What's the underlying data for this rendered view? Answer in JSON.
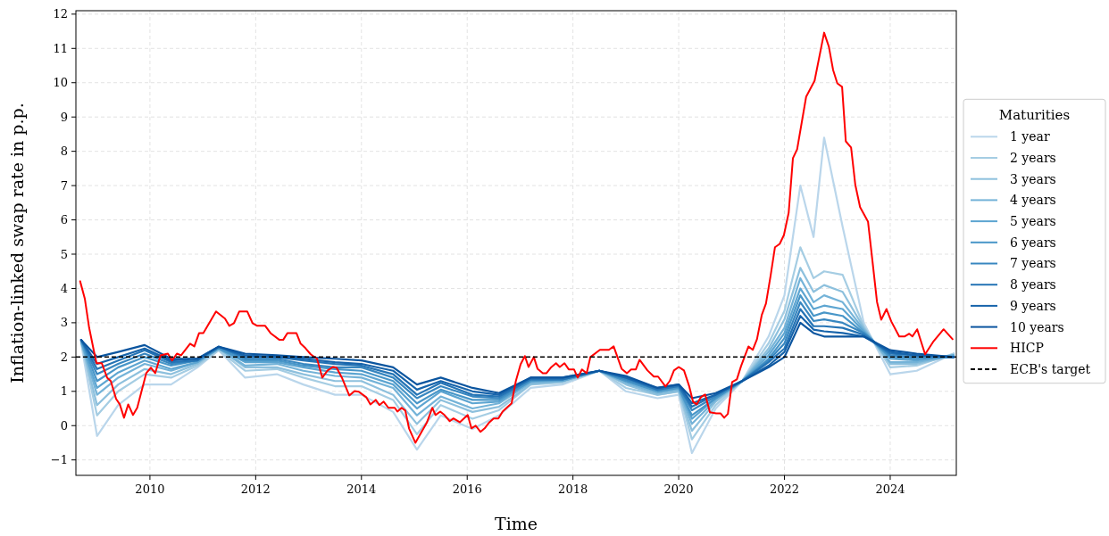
{
  "chart_data": {
    "type": "line",
    "xlabel": "Time",
    "ylabel": "Inflation-linked swap rate in p.p.",
    "legend_title": "Maturities",
    "legend": "right",
    "grid": true,
    "marker": "none",
    "line_style": "solid",
    "xlim": [
      2008.6,
      2025.25
    ],
    "xticks": [
      2010,
      2012,
      2014,
      2016,
      2018,
      2020,
      2022,
      2024
    ],
    "ylim": [
      -1.45,
      12.1
    ],
    "yticks": [
      -1,
      0,
      1,
      2,
      3,
      4,
      5,
      6,
      7,
      8,
      9,
      10,
      11,
      12
    ],
    "x": [
      2008.7,
      2009.0,
      2009.4,
      2009.9,
      2010.4,
      2010.9,
      2011.3,
      2011.8,
      2012.4,
      2012.9,
      2013.5,
      2014.0,
      2014.6,
      2015.05,
      2015.5,
      2016.1,
      2016.6,
      2017.2,
      2017.8,
      2018.5,
      2019.0,
      2019.6,
      2020.0,
      2020.25,
      2020.7,
      2021.2,
      2021.7,
      2022.0,
      2022.3,
      2022.55,
      2022.75,
      2023.1,
      2023.5,
      2024.0,
      2024.5,
      2025.2
    ],
    "series": [
      {
        "name": "1 year",
        "color": "#bad6eb",
        "values": [
          2.4,
          -0.3,
          0.6,
          1.2,
          1.2,
          1.7,
          2.2,
          1.4,
          1.5,
          1.2,
          0.9,
          0.9,
          0.4,
          -0.7,
          0.3,
          -0.1,
          0.3,
          1.1,
          1.2,
          1.6,
          1.0,
          0.8,
          0.9,
          -0.8,
          0.5,
          1.3,
          2.6,
          3.8,
          7.0,
          5.5,
          8.4,
          5.8,
          3.0,
          1.5,
          1.6,
          2.1
        ]
      },
      {
        "name": "2 years",
        "color": "#a5cde3",
        "values": [
          2.45,
          0.3,
          1.0,
          1.5,
          1.4,
          1.75,
          2.2,
          1.6,
          1.65,
          1.4,
          1.15,
          1.15,
          0.75,
          -0.25,
          0.6,
          0.2,
          0.45,
          1.2,
          1.25,
          1.6,
          1.1,
          0.9,
          1.0,
          -0.4,
          0.6,
          1.3,
          2.4,
          3.35,
          5.2,
          4.3,
          4.5,
          4.4,
          2.9,
          1.7,
          1.75,
          2.1
        ]
      },
      {
        "name": "3 years",
        "color": "#8dc0dd",
        "values": [
          2.45,
          0.6,
          1.2,
          1.65,
          1.5,
          1.8,
          2.25,
          1.7,
          1.7,
          1.5,
          1.3,
          1.3,
          0.9,
          0.05,
          0.75,
          0.4,
          0.55,
          1.2,
          1.3,
          1.6,
          1.2,
          0.9,
          1.0,
          -0.15,
          0.7,
          1.3,
          2.25,
          3.1,
          4.6,
          3.9,
          4.1,
          3.9,
          2.85,
          1.8,
          1.8,
          2.05
        ]
      },
      {
        "name": "4 years",
        "color": "#74b3d8",
        "values": [
          2.45,
          0.9,
          1.4,
          1.8,
          1.6,
          1.85,
          2.25,
          1.75,
          1.8,
          1.6,
          1.45,
          1.4,
          1.1,
          0.3,
          0.85,
          0.5,
          0.65,
          1.25,
          1.3,
          1.6,
          1.25,
          0.95,
          1.05,
          0.05,
          0.75,
          1.3,
          2.15,
          2.85,
          4.3,
          3.6,
          3.8,
          3.6,
          2.8,
          1.85,
          1.85,
          2.05
        ]
      },
      {
        "name": "5 years",
        "color": "#5da5d1",
        "values": [
          2.45,
          1.1,
          1.55,
          1.9,
          1.65,
          1.85,
          2.25,
          1.85,
          1.85,
          1.7,
          1.55,
          1.5,
          1.2,
          0.5,
          1.0,
          0.65,
          0.7,
          1.3,
          1.3,
          1.6,
          1.3,
          1.0,
          1.1,
          0.2,
          0.8,
          1.3,
          2.05,
          2.7,
          4.0,
          3.4,
          3.5,
          3.4,
          2.75,
          1.95,
          1.9,
          2.05
        ]
      },
      {
        "name": "6 years",
        "color": "#4896c8",
        "values": [
          2.5,
          1.3,
          1.7,
          2.0,
          1.75,
          1.9,
          2.25,
          1.9,
          1.9,
          1.75,
          1.65,
          1.6,
          1.3,
          0.65,
          1.05,
          0.75,
          0.75,
          1.3,
          1.35,
          1.6,
          1.3,
          1.0,
          1.1,
          0.3,
          0.8,
          1.3,
          1.95,
          2.55,
          3.8,
          3.2,
          3.3,
          3.2,
          2.7,
          2.0,
          1.95,
          2.0
        ]
      },
      {
        "name": "7 years",
        "color": "#3887c0",
        "values": [
          2.5,
          1.5,
          1.8,
          2.1,
          1.8,
          1.9,
          2.3,
          1.95,
          1.95,
          1.8,
          1.7,
          1.7,
          1.4,
          0.8,
          1.15,
          0.85,
          0.8,
          1.35,
          1.35,
          1.6,
          1.35,
          1.05,
          1.15,
          0.45,
          0.85,
          1.3,
          1.9,
          2.4,
          3.6,
          3.05,
          3.1,
          3.0,
          2.7,
          2.05,
          2.0,
          2.0
        ]
      },
      {
        "name": "8 years",
        "color": "#2574b5",
        "values": [
          2.5,
          1.65,
          1.9,
          2.2,
          1.85,
          1.9,
          2.3,
          2.0,
          2.0,
          1.9,
          1.8,
          1.75,
          1.5,
          0.9,
          1.25,
          0.9,
          0.85,
          1.35,
          1.35,
          1.6,
          1.4,
          1.05,
          1.15,
          0.55,
          0.9,
          1.3,
          1.85,
          2.25,
          3.4,
          2.9,
          2.9,
          2.85,
          2.65,
          2.1,
          2.05,
          2.0
        ]
      },
      {
        "name": "9 years",
        "color": "#1764ab",
        "values": [
          2.5,
          1.8,
          2.0,
          2.25,
          1.9,
          1.95,
          2.3,
          2.05,
          2.0,
          1.95,
          1.85,
          1.8,
          1.6,
          1.05,
          1.3,
          1.0,
          0.9,
          1.4,
          1.4,
          1.6,
          1.4,
          1.1,
          1.2,
          0.65,
          0.9,
          1.3,
          1.75,
          2.15,
          3.2,
          2.8,
          2.75,
          2.7,
          2.6,
          2.15,
          2.05,
          2.0
        ]
      },
      {
        "name": "10 years",
        "color": "#0b559f",
        "values": [
          2.5,
          2.0,
          2.15,
          2.35,
          1.95,
          1.95,
          2.3,
          2.1,
          2.05,
          2.0,
          1.95,
          1.9,
          1.7,
          1.2,
          1.4,
          1.1,
          0.95,
          1.4,
          1.4,
          1.6,
          1.45,
          1.1,
          1.2,
          0.8,
          0.95,
          1.3,
          1.7,
          2.0,
          3.0,
          2.7,
          2.6,
          2.6,
          2.6,
          2.2,
          2.1,
          2.0
        ]
      },
      {
        "name": "HICP",
        "color": "#ff0000",
        "x": [
          2008.68,
          2008.77,
          2008.85,
          2008.94,
          2008.99,
          2009.09,
          2009.19,
          2009.26,
          2009.36,
          2009.43,
          2009.51,
          2009.59,
          2009.68,
          2009.76,
          2009.93,
          2010.02,
          2010.1,
          2010.2,
          2010.34,
          2010.42,
          2010.51,
          2010.59,
          2010.76,
          2010.84,
          2010.93,
          2011.01,
          2011.25,
          2011.42,
          2011.5,
          2011.59,
          2011.69,
          2011.84,
          2011.94,
          2012.03,
          2012.18,
          2012.28,
          2012.45,
          2012.52,
          2012.6,
          2012.77,
          2012.85,
          2012.94,
          2013.04,
          2013.16,
          2013.26,
          2013.36,
          2013.46,
          2013.53,
          2013.63,
          2013.77,
          2013.87,
          2013.95,
          2014.09,
          2014.17,
          2014.27,
          2014.34,
          2014.42,
          2014.51,
          2014.63,
          2014.68,
          2014.76,
          2014.83,
          2014.9,
          2015.02,
          2015.24,
          2015.34,
          2015.4,
          2015.49,
          2015.57,
          2015.67,
          2015.74,
          2015.86,
          2016.01,
          2016.08,
          2016.16,
          2016.25,
          2016.33,
          2016.42,
          2016.5,
          2016.59,
          2016.67,
          2016.76,
          2016.84,
          2016.92,
          2017.01,
          2017.09,
          2017.16,
          2017.26,
          2017.33,
          2017.43,
          2017.5,
          2017.58,
          2017.68,
          2017.75,
          2017.84,
          2017.92,
          2018.02,
          2018.09,
          2018.17,
          2018.26,
          2018.33,
          2018.51,
          2018.68,
          2018.77,
          2018.92,
          2019.02,
          2019.1,
          2019.19,
          2019.26,
          2019.41,
          2019.53,
          2019.61,
          2019.75,
          2019.83,
          2019.91,
          2020.0,
          2020.1,
          2020.2,
          2020.27,
          2020.34,
          2020.42,
          2020.5,
          2020.59,
          2020.71,
          2020.79,
          2020.86,
          2020.93,
          2021.01,
          2021.1,
          2021.18,
          2021.32,
          2021.4,
          2021.48,
          2021.57,
          2021.65,
          2021.74,
          2021.82,
          2021.91,
          2021.99,
          2022.08,
          2022.16,
          2022.24,
          2022.41,
          2022.57,
          2022.75,
          2022.84,
          2022.92,
          2023.0,
          2023.09,
          2023.16,
          2023.26,
          2023.34,
          2023.43,
          2023.58,
          2023.66,
          2023.75,
          2023.83,
          2023.93,
          2024.02,
          2024.17,
          2024.27,
          2024.36,
          2024.42,
          2024.51,
          2024.66,
          2024.81,
          2025.01,
          2025.18
        ],
        "values": [
          4.21,
          3.69,
          2.86,
          2.18,
          1.82,
          1.82,
          1.4,
          1.3,
          0.78,
          0.62,
          0.23,
          0.62,
          0.31,
          0.52,
          1.53,
          1.69,
          1.53,
          2.05,
          2.1,
          1.9,
          2.1,
          2.05,
          2.39,
          2.31,
          2.7,
          2.7,
          3.33,
          3.12,
          2.91,
          2.99,
          3.33,
          3.33,
          2.99,
          2.91,
          2.91,
          2.7,
          2.5,
          2.5,
          2.7,
          2.7,
          2.39,
          2.26,
          2.08,
          1.95,
          1.4,
          1.61,
          1.71,
          1.69,
          1.4,
          0.88,
          1.01,
          0.99,
          0.83,
          0.62,
          0.75,
          0.6,
          0.7,
          0.52,
          0.52,
          0.41,
          0.52,
          0.44,
          -0.08,
          -0.5,
          0.1,
          0.52,
          0.31,
          0.41,
          0.31,
          0.13,
          0.21,
          0.1,
          0.31,
          -0.08,
          0,
          -0.18,
          -0.08,
          0.1,
          0.21,
          0.21,
          0.41,
          0.54,
          0.65,
          1.3,
          1.79,
          2.03,
          1.71,
          2.0,
          1.66,
          1.53,
          1.53,
          1.69,
          1.82,
          1.71,
          1.82,
          1.64,
          1.64,
          1.4,
          1.64,
          1.53,
          2.0,
          2.21,
          2.21,
          2.31,
          1.66,
          1.53,
          1.64,
          1.64,
          1.92,
          1.61,
          1.43,
          1.43,
          1.14,
          1.3,
          1.61,
          1.71,
          1.61,
          1.14,
          0.7,
          0.62,
          0.83,
          0.91,
          0.39,
          0.36,
          0.36,
          0.23,
          0.34,
          1.27,
          1.35,
          1.74,
          2.31,
          2.21,
          2.52,
          3.22,
          3.56,
          4.39,
          5.2,
          5.3,
          5.56,
          6.21,
          7.8,
          8.06,
          9.59,
          10.06,
          11.46,
          11.05,
          10.37,
          9.98,
          9.88,
          8.29,
          8.11,
          7.02,
          6.37,
          5.95,
          4.86,
          3.61,
          3.09,
          3.4,
          3.04,
          2.6,
          2.6,
          2.68,
          2.6,
          2.81,
          2.08,
          2.44,
          2.81,
          2.52
        ]
      }
    ],
    "ref_lines": [
      {
        "axis": "y",
        "value": 2,
        "label": "ECB's target",
        "color": "#000000",
        "line_style": "dashed"
      }
    ]
  }
}
